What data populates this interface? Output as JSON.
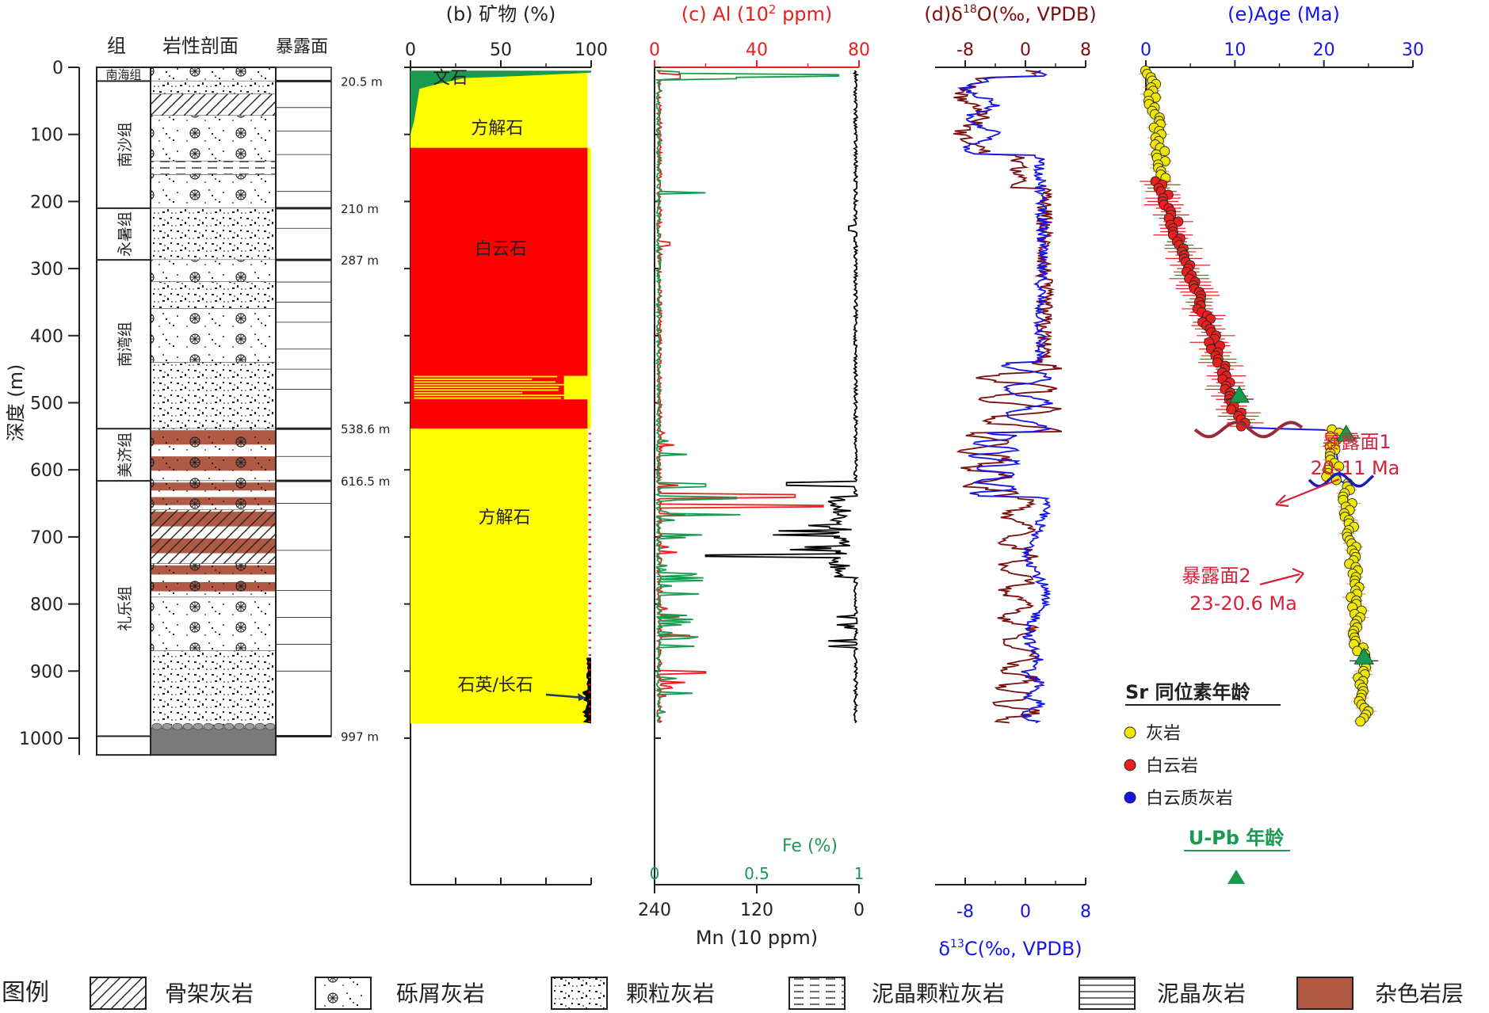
{
  "depth_axis": {
    "label": "深度 (m)",
    "min": 0,
    "max": 1000,
    "ticks": [
      0,
      100,
      200,
      300,
      400,
      500,
      600,
      700,
      800,
      900,
      1000
    ]
  },
  "column_headers": {
    "formation": "组",
    "lithology": "岩性剖面",
    "exposure": "暴露面"
  },
  "formations": [
    {
      "name": "南海组",
      "top": 0,
      "bottom": 20.5
    },
    {
      "name": "南沙组",
      "top": 20.5,
      "bottom": 210
    },
    {
      "name": "永暑组",
      "top": 210,
      "bottom": 287
    },
    {
      "name": "南湾组",
      "top": 287,
      "bottom": 538.6
    },
    {
      "name": "美济组",
      "top": 538.6,
      "bottom": 616.5
    },
    {
      "name": "礼乐组",
      "top": 616.5,
      "bottom": 997
    }
  ],
  "boundary_labels": [
    {
      "depth": 20.5,
      "label": "20.5 m"
    },
    {
      "depth": 210,
      "label": "210 m"
    },
    {
      "depth": 287,
      "label": "287 m"
    },
    {
      "depth": 538.6,
      "label": "538.6 m"
    },
    {
      "depth": 616.5,
      "label": "616.5 m"
    },
    {
      "depth": 997,
      "label": "997 m"
    }
  ],
  "lithology": [
    {
      "top": 0,
      "bottom": 20.5,
      "type": "rubble"
    },
    {
      "top": 20.5,
      "bottom": 40,
      "type": "grain"
    },
    {
      "top": 40,
      "bottom": 72,
      "type": "skeletal"
    },
    {
      "top": 72,
      "bottom": 140,
      "type": "rubble"
    },
    {
      "top": 140,
      "bottom": 160,
      "type": "mudgrain"
    },
    {
      "top": 160,
      "bottom": 210,
      "type": "rubble"
    },
    {
      "top": 210,
      "bottom": 287,
      "type": "grain"
    },
    {
      "top": 287,
      "bottom": 320,
      "type": "rubble"
    },
    {
      "top": 320,
      "bottom": 360,
      "type": "grain"
    },
    {
      "top": 360,
      "bottom": 440,
      "type": "rubble"
    },
    {
      "top": 440,
      "bottom": 538.6,
      "type": "grain"
    },
    {
      "top": 538.6,
      "bottom": 616.5,
      "type": "rubble_mottled"
    },
    {
      "top": 616.5,
      "bottom": 660,
      "type": "rubble_mottled"
    },
    {
      "top": 660,
      "bottom": 740,
      "type": "skeletal_mottled"
    },
    {
      "top": 740,
      "bottom": 790,
      "type": "rubble_mottled"
    },
    {
      "top": 790,
      "bottom": 870,
      "type": "rubble"
    },
    {
      "top": 870,
      "bottom": 985,
      "type": "grain"
    },
    {
      "top": 985,
      "bottom": 1025,
      "type": "base"
    }
  ],
  "minerals": {
    "title": "(b) 矿物 (%)",
    "ticks": [
      0,
      50,
      100
    ],
    "colors": {
      "calcite": "#ffff00",
      "dolomite": "#ff0000",
      "aragonite": "#1a9a50",
      "quartz": "#000000"
    },
    "labels": [
      {
        "text": "文石",
        "depth": 15,
        "pct": 22
      },
      {
        "text": "方解石",
        "depth": 90,
        "pct": 48
      },
      {
        "text": "白云石",
        "depth": 270,
        "pct": 50
      },
      {
        "text": "方解石",
        "depth": 670,
        "pct": 52
      },
      {
        "text": "石英/长石",
        "depth": 920,
        "pct": 47
      }
    ],
    "zones": [
      {
        "top": 5,
        "bottom": 120,
        "dolomite": 0,
        "calcite": 98
      },
      {
        "top": 120,
        "bottom": 460,
        "dolomite": 98,
        "calcite": 2
      },
      {
        "top": 460,
        "bottom": 495,
        "dolomite": 85,
        "calcite": 15
      },
      {
        "top": 495,
        "bottom": 538.6,
        "dolomite": 98,
        "calcite": 2
      },
      {
        "top": 538.6,
        "bottom": 978,
        "dolomite": 0,
        "calcite": 98
      }
    ]
  },
  "geochem": {
    "title_prefix": "(c) Al (10",
    "title_exp": "2",
    "title_suffix": " ppm)",
    "al_ticks": [
      0,
      40,
      80
    ],
    "fe_label": "Fe (%)",
    "fe_ticks": [
      "0",
      "0.5",
      "1"
    ],
    "mn_label": "Mn (10 ppm)",
    "mn_ticks": [
      "240",
      "120",
      "0"
    ],
    "colors": {
      "al": "#e8201e",
      "fe": "#1a9a50",
      "mn": "#000000"
    }
  },
  "isotopes": {
    "title_prefix": "(d)δ",
    "title_sup": "18",
    "title_suffix": "O(‰, VPDB)",
    "bottom_prefix": "δ",
    "bottom_sup": "13",
    "bottom_suffix": "C(‰, VPDB)",
    "ticks": [
      -8,
      0,
      8
    ],
    "tick_labels": [
      "-8",
      "0",
      "8"
    ],
    "colors": {
      "o18": "#7b0f0f",
      "c13": "#1515e8"
    }
  },
  "age": {
    "title": "(e)Age (Ma)",
    "ticks": [
      0,
      10,
      20,
      30
    ],
    "exposure1_name": "暴露面1",
    "exposure1_range": "20-11 Ma",
    "exposure2_name": "暴露面2",
    "exposure2_range": "23-20.6 Ma",
    "legend_title": "Sr 同位素年龄",
    "legend_items": [
      {
        "label": "灰岩",
        "color": "#f0e800"
      },
      {
        "label": "白云岩",
        "color": "#e8201e"
      },
      {
        "label": "白云质灰岩",
        "color": "#1515e8"
      }
    ],
    "upb_title": "U-Pb 年龄",
    "upb_color": "#1a9a50",
    "upb_points": [
      {
        "depth": 490,
        "age": 10.5
      },
      {
        "depth": 548,
        "age": 22.5
      },
      {
        "depth": 880,
        "age": 24.5
      }
    ]
  },
  "legend": {
    "title": "图例",
    "items": [
      {
        "label": "骨架灰岩",
        "type": "skeletal"
      },
      {
        "label": "砾屑灰岩",
        "type": "rubble"
      },
      {
        "label": "颗粒灰岩",
        "type": "grain"
      },
      {
        "label": "泥晶颗粒灰岩",
        "type": "mudgrain"
      },
      {
        "label": "泥晶灰岩",
        "type": "micrite"
      },
      {
        "label": "杂色岩层",
        "type": "mottled"
      }
    ]
  }
}
